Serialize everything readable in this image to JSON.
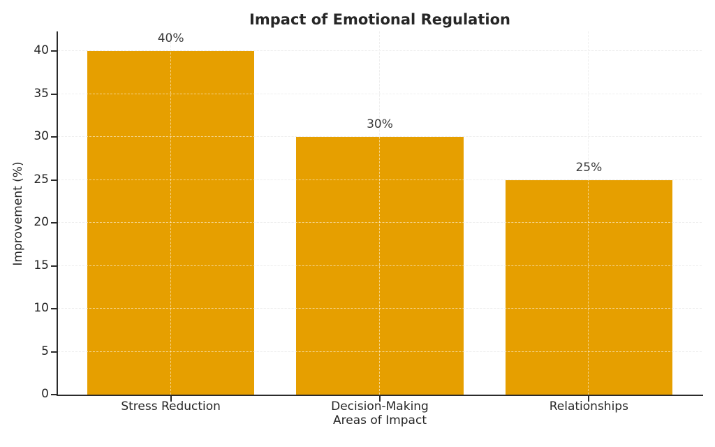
{
  "chart_data": {
    "type": "bar",
    "title": "Impact of Emotional Regulation",
    "xlabel": "Areas of Impact",
    "ylabel": "Improvement (%)",
    "categories": [
      "Stress Reduction",
      "Decision-Making",
      "Relationships"
    ],
    "values": [
      40,
      30,
      25
    ],
    "bar_labels": [
      "40%",
      "30%",
      "25%"
    ],
    "yticks": [
      0,
      5,
      10,
      15,
      20,
      25,
      30,
      35,
      40
    ],
    "ylim": [
      0,
      42.3
    ],
    "bar_color": "#E69F00",
    "grid": true,
    "grid_style": "dashed",
    "grid_color": "#d9d9d9",
    "text_color": "#262626",
    "spine_color": "#2b2b2b",
    "legend": "none",
    "background_color": "#ffffff"
  }
}
